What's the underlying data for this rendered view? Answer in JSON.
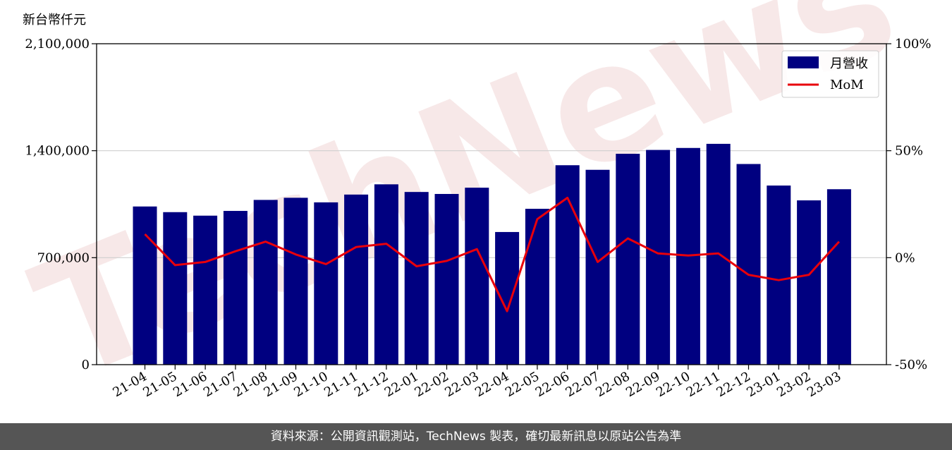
{
  "chart_data": {
    "type": "bar",
    "ylabel_unit": "新台幣仟元",
    "categories": [
      "21-04",
      "21-05",
      "21-06",
      "21-07",
      "21-08",
      "21-09",
      "21-10",
      "21-11",
      "21-12",
      "22-01",
      "22-02",
      "22-03",
      "22-04",
      "22-05",
      "22-06",
      "22-07",
      "22-08",
      "22-09",
      "22-10",
      "22-11",
      "22-12",
      "23-01",
      "23-02",
      "23-03"
    ],
    "series": [
      {
        "name": "月營收",
        "axis": "left",
        "kind": "bar",
        "color": "#000080",
        "values": [
          1035000,
          998000,
          975000,
          1006000,
          1078000,
          1092000,
          1062000,
          1113000,
          1180000,
          1130000,
          1117000,
          1158000,
          868000,
          1020000,
          1305000,
          1275000,
          1380000,
          1405000,
          1418000,
          1445000,
          1313000,
          1172000,
          1075000,
          1148000
        ]
      },
      {
        "name": "MoM",
        "axis": "right",
        "kind": "line",
        "color": "#e8000b",
        "values": [
          11,
          -3.5,
          -2,
          3,
          7.5,
          1.5,
          -3,
          5,
          6.5,
          -4,
          -1.5,
          4,
          -25,
          18,
          28,
          -2,
          9,
          2,
          1,
          2,
          -8,
          -10.5,
          -8,
          7.5
        ]
      }
    ],
    "yleft": {
      "lim": [
        0,
        2100000
      ],
      "ticks": [
        "0",
        "700,000",
        "1,400,000",
        "2,100,000"
      ],
      "tick_values": [
        0,
        700000,
        1400000,
        2100000
      ]
    },
    "yright": {
      "lim": [
        -50,
        100
      ],
      "ticks": [
        "-50%",
        "0%",
        "50%",
        "100%"
      ],
      "tick_values": [
        -50,
        0,
        50,
        100
      ]
    },
    "grid": "horizontal",
    "legend": "top-right"
  },
  "watermark": "TechNews",
  "footer": {
    "text": "資料來源：公開資訊觀測站，TechNews 製表，確切最新訊息以原站公告為準"
  }
}
